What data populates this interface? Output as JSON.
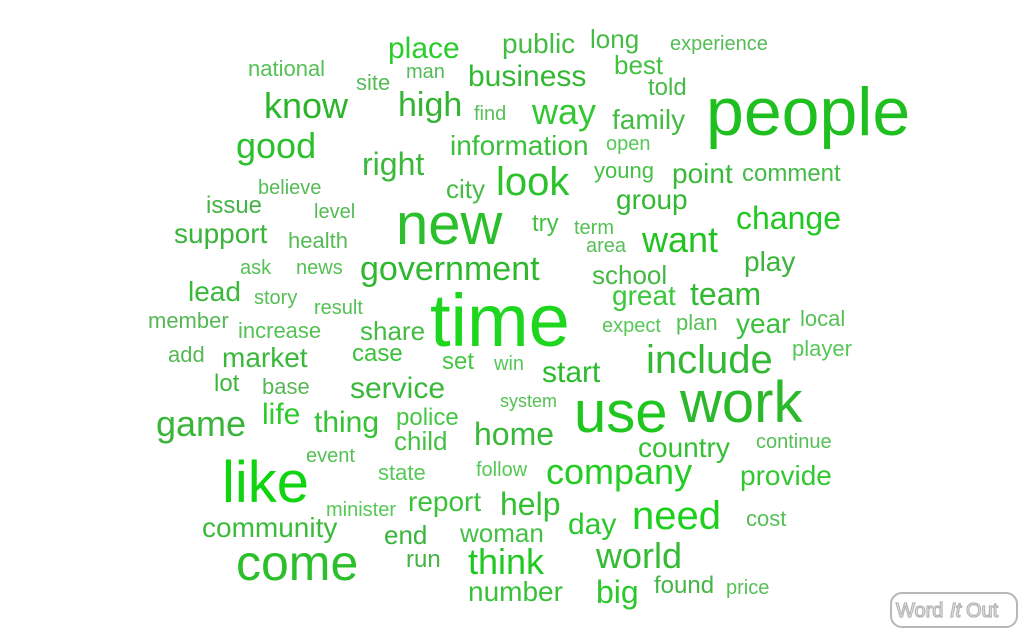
{
  "cloud": {
    "colors": [
      "#20c020",
      "#2bd12b",
      "#3ac83a",
      "#1ed61e",
      "#39b839",
      "#44cc44",
      "#0fd40f",
      "#2ab52a"
    ],
    "words": [
      {
        "text": "people",
        "color": "#1fbf1f"
      },
      {
        "text": "time",
        "color": "#1ed61e"
      },
      {
        "text": "new",
        "color": "#2bbf2b"
      },
      {
        "text": "work",
        "color": "#2bb82b"
      },
      {
        "text": "like",
        "color": "#0fd40f"
      },
      {
        "text": "use",
        "color": "#1ec61e"
      },
      {
        "text": "come",
        "color": "#2bc02b"
      },
      {
        "text": "include",
        "color": "#33b833"
      },
      {
        "text": "need",
        "color": "#1ed01e"
      },
      {
        "text": "company",
        "color": "#22cc22"
      },
      {
        "text": "know",
        "color": "#2ab52a"
      },
      {
        "text": "look",
        "color": "#2bc22b"
      },
      {
        "text": "government",
        "color": "#2db82d"
      },
      {
        "text": "good",
        "color": "#2cc02c"
      },
      {
        "text": "want",
        "color": "#22c222"
      },
      {
        "text": "game",
        "color": "#3ab43a"
      },
      {
        "text": "world",
        "color": "#33bb33"
      },
      {
        "text": "think",
        "color": "#22c822"
      },
      {
        "text": "way",
        "color": "#33c833"
      },
      {
        "text": "high",
        "color": "#33b433"
      },
      {
        "text": "right",
        "color": "#3ab83a"
      },
      {
        "text": "home",
        "color": "#3ab83a"
      },
      {
        "text": "change",
        "color": "#22c822"
      },
      {
        "text": "business",
        "color": "#33b833"
      },
      {
        "text": "team",
        "color": "#33b833"
      },
      {
        "text": "start",
        "color": "#2bbb2b"
      },
      {
        "text": "help",
        "color": "#33c033"
      },
      {
        "text": "day",
        "color": "#2bc82b"
      },
      {
        "text": "service",
        "color": "#3ab83a"
      },
      {
        "text": "thing",
        "color": "#33c233"
      },
      {
        "text": "country",
        "color": "#33c033"
      },
      {
        "text": "provide",
        "color": "#33c833"
      },
      {
        "text": "place",
        "color": "#2bcc2b"
      },
      {
        "text": "market",
        "color": "#3ab83a"
      },
      {
        "text": "report",
        "color": "#3ac23a"
      },
      {
        "text": "information",
        "color": "#3ac03a"
      },
      {
        "text": "family",
        "color": "#44bb44"
      },
      {
        "text": "life",
        "color": "#2bcc2b"
      },
      {
        "text": "support",
        "color": "#3ab43a"
      },
      {
        "text": "community",
        "color": "#3abb3a"
      },
      {
        "text": "great",
        "color": "#3ac83a"
      },
      {
        "text": "point",
        "color": "#3ab83a"
      },
      {
        "text": "group",
        "color": "#33b833"
      },
      {
        "text": "year",
        "color": "#3ac03a"
      },
      {
        "text": "play",
        "color": "#3ab43a"
      },
      {
        "text": "public",
        "color": "#44bb44"
      },
      {
        "text": "best",
        "color": "#44c044"
      },
      {
        "text": "big",
        "color": "#2bc82b"
      },
      {
        "text": "number",
        "color": "#3ac03a"
      },
      {
        "text": "lead",
        "color": "#3ab83a"
      },
      {
        "text": "long",
        "color": "#44bb44"
      },
      {
        "text": "share",
        "color": "#44bb44"
      },
      {
        "text": "city",
        "color": "#44bb44"
      },
      {
        "text": "school",
        "color": "#44b844"
      },
      {
        "text": "child",
        "color": "#44c044"
      },
      {
        "text": "end",
        "color": "#3ab43a"
      },
      {
        "text": "woman",
        "color": "#44c044"
      },
      {
        "text": "case",
        "color": "#3ac03a"
      },
      {
        "text": "set",
        "color": "#44c844"
      },
      {
        "text": "lot",
        "color": "#3ab83a"
      },
      {
        "text": "found",
        "color": "#44b444"
      },
      {
        "text": "told",
        "color": "#44bb44"
      },
      {
        "text": "comment",
        "color": "#44bb44"
      },
      {
        "text": "young",
        "color": "#44c044"
      },
      {
        "text": "try",
        "color": "#44c044"
      },
      {
        "text": "police",
        "color": "#44c844"
      },
      {
        "text": "run",
        "color": "#44b444"
      },
      {
        "text": "issue",
        "color": "#44b444"
      },
      {
        "text": "national",
        "color": "#55c055"
      },
      {
        "text": "local",
        "color": "#55c055"
      },
      {
        "text": "plan",
        "color": "#55c055"
      },
      {
        "text": "add",
        "color": "#55b855"
      },
      {
        "text": "health",
        "color": "#55bb55"
      },
      {
        "text": "increase",
        "color": "#55c055"
      },
      {
        "text": "member",
        "color": "#55b855"
      },
      {
        "text": "player",
        "color": "#55c855"
      },
      {
        "text": "state",
        "color": "#55c855"
      },
      {
        "text": "cost",
        "color": "#55c055"
      },
      {
        "text": "site",
        "color": "#55bb55"
      },
      {
        "text": "man",
        "color": "#55bb55"
      },
      {
        "text": "area",
        "color": "#55c055"
      },
      {
        "text": "term",
        "color": "#55c055"
      },
      {
        "text": "open",
        "color": "#55c855"
      },
      {
        "text": "win",
        "color": "#55c855"
      },
      {
        "text": "base",
        "color": "#55b855"
      },
      {
        "text": "story",
        "color": "#55c055"
      },
      {
        "text": "news",
        "color": "#55c055"
      },
      {
        "text": "follow",
        "color": "#55c855"
      },
      {
        "text": "event",
        "color": "#55c055"
      },
      {
        "text": "find",
        "color": "#55c055"
      },
      {
        "text": "believe",
        "color": "#55bb55"
      },
      {
        "text": "expect",
        "color": "#55c855"
      },
      {
        "text": "result",
        "color": "#55c055"
      },
      {
        "text": "level",
        "color": "#55bb55"
      },
      {
        "text": "ask",
        "color": "#55c055"
      },
      {
        "text": "minister",
        "color": "#55c855"
      },
      {
        "text": "experience",
        "color": "#55bb55"
      },
      {
        "text": "continue",
        "color": "#55c055"
      },
      {
        "text": "system",
        "color": "#55c055"
      },
      {
        "text": "price",
        "color": "#55c055"
      }
    ]
  },
  "logo": {
    "text_word": "Word",
    "text_it": "It",
    "text_out": "Out",
    "color": "#b7b7b7"
  }
}
